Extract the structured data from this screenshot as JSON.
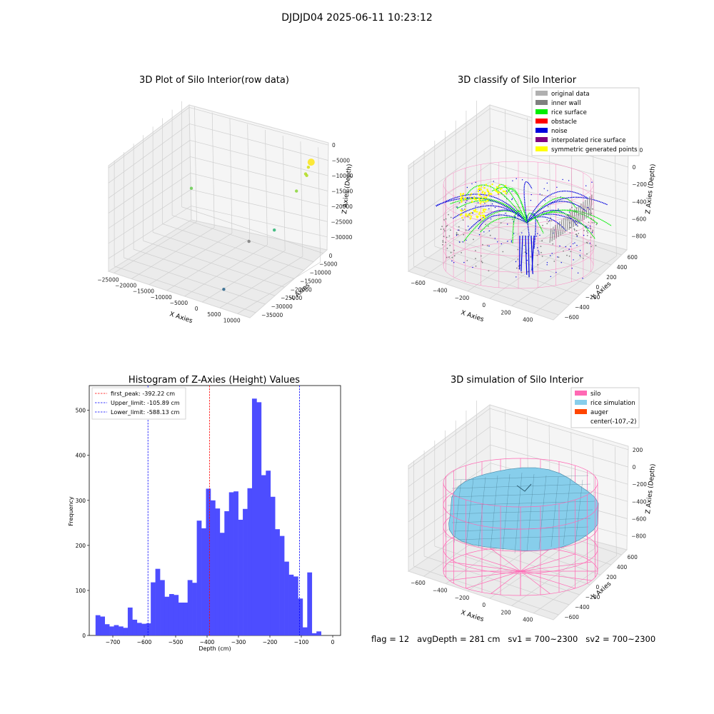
{
  "suptitle": "DJDJD04 2025-06-11 10:23:12",
  "footer": "flag = 12   avgDepth = 281 cm   sv1 = 700~2300   sv2 = 700~2300",
  "colors": {
    "histogram_bar": "#4d4dff",
    "first_peak_line": "#ff0000",
    "limit_line": "#0000ff",
    "silo_wire": "#ff69b4",
    "rice_surface": "#00ee00",
    "noise": "#0000dd",
    "inner_wall": "#808080",
    "symmetric_points": "#ffff00",
    "simulation_surface": "#87ceeb",
    "auger": "#ff4500"
  },
  "chart_data": [
    {
      "type": "scatter",
      "subtype": "3d-scatter",
      "title": "3D Plot of Silo Interior(row data)",
      "xlabel": "X Axies",
      "ylabel": "Y Axies",
      "zlabel": "Z Axies (Depth)",
      "x_ticks": [
        "−25000",
        "−20000",
        "−15000",
        "−10000",
        "−5000",
        "0",
        "5000",
        "10000"
      ],
      "y_ticks": [
        "0",
        "−5000",
        "−10000",
        "−15000",
        "−20000",
        "−25000",
        "−30000",
        "−35000"
      ],
      "z_ticks": [
        "0",
        "−5000",
        "−10000",
        "−15000",
        "−20000",
        "−25000",
        "−30000"
      ],
      "points": [
        {
          "x": 9000,
          "y": -2000,
          "z": 0,
          "color": "#fde725"
        },
        {
          "x": 8500,
          "y": -2500,
          "z": -1500,
          "color": "#d8e219"
        },
        {
          "x": 8000,
          "y": -3000,
          "z": -3500,
          "color": "#b5de2b"
        },
        {
          "x": 8200,
          "y": -2800,
          "z": -4000,
          "color": "#b5de2b"
        },
        {
          "x": 6000,
          "y": -4000,
          "z": -9000,
          "color": "#90d743"
        },
        {
          "x": 7000,
          "y": -16000,
          "z": -15500,
          "color": "#35b779"
        },
        {
          "x": -25000,
          "y": -1000,
          "z": -20500,
          "color": "#6ece58"
        },
        {
          "x": -5000,
          "y": -8000,
          "z": -26500,
          "color": "#808080"
        },
        {
          "x": 0,
          "y": -28000,
          "z": -31000,
          "color": "#31688e"
        }
      ]
    },
    {
      "type": "scatter",
      "subtype": "3d-classification",
      "title": "3D classify of Silo Interior",
      "xlabel": "X Axies",
      "ylabel": "Y Axies",
      "zlabel": "Z Axies (Depth)",
      "x_ticks": [
        "−600",
        "−400",
        "−200",
        "0",
        "200",
        "400"
      ],
      "y_ticks": [
        "600",
        "400",
        "200",
        "0",
        "−200",
        "−400",
        "−600"
      ],
      "z_ticks": [
        "200",
        "0",
        "−200",
        "−400",
        "−600",
        "−800"
      ],
      "legend": [
        {
          "label": "original data",
          "color": "#b0b0b0"
        },
        {
          "label": "inner wall",
          "color": "#808080"
        },
        {
          "label": "rice surface",
          "color": "#00ee00"
        },
        {
          "label": "obstacle",
          "color": "#ff0000"
        },
        {
          "label": "noise",
          "color": "#0000dd"
        },
        {
          "label": "interpolated rice surface",
          "color": "#800080"
        },
        {
          "label": "symmetric generated points",
          "color": "#ffff00"
        }
      ]
    },
    {
      "type": "bar",
      "subtype": "histogram",
      "title": "Histogram of Z-Axies (Height) Values",
      "xlabel": "Depth (cm)",
      "ylabel": "Frequency",
      "xlim": [
        -775,
        25
      ],
      "ylim": [
        0,
        555
      ],
      "x_ticks": [
        -700,
        -600,
        -500,
        -400,
        -300,
        -200,
        -100,
        0
      ],
      "x_tick_labels": [
        "−700",
        "−600",
        "−500",
        "−400",
        "−300",
        "−200",
        "−100",
        "0"
      ],
      "y_ticks": [
        0,
        100,
        200,
        300,
        400,
        500
      ],
      "bins_start": -755,
      "bin_width": 14.65,
      "values": [
        45,
        42,
        25,
        20,
        23,
        20,
        17,
        62,
        35,
        28,
        26,
        27,
        118,
        148,
        123,
        86,
        92,
        90,
        73,
        73,
        123,
        117,
        255,
        238,
        326,
        300,
        282,
        228,
        276,
        318,
        320,
        257,
        281,
        327,
        526,
        518,
        356,
        366,
        308,
        236,
        221,
        164,
        135,
        131,
        82,
        18,
        140,
        5,
        9
      ],
      "vlines": [
        {
          "label": "first_peak: -392.22 cm",
          "x": -392.22,
          "color": "#ff0000"
        },
        {
          "label": "Upper_limit: -105.89 cm",
          "x": -105.89,
          "color": "#0000ff"
        },
        {
          "label": "Lower_limit: -588.13 cm",
          "x": -588.13,
          "color": "#0000ff"
        }
      ]
    },
    {
      "type": "area",
      "subtype": "3d-surface",
      "title": "3D simulation of Silo Interior",
      "xlabel": "X Axies",
      "ylabel": "Y Axies",
      "zlabel": "Z Axies (Depth)",
      "x_ticks": [
        "−600",
        "−400",
        "−200",
        "0",
        "200",
        "400"
      ],
      "y_ticks": [
        "600",
        "400",
        "200",
        "0",
        "−200",
        "−400",
        "−600"
      ],
      "z_ticks": [
        "200",
        "0",
        "−200",
        "−400",
        "−600",
        "−800"
      ],
      "legend": [
        {
          "label": "silo",
          "color": "#ff69b4"
        },
        {
          "label": "rice simulation",
          "color": "#87ceeb"
        },
        {
          "label": "auger",
          "color": "#ff4500"
        },
        {
          "label": "center(-107,-2)",
          "color": ""
        }
      ]
    }
  ]
}
